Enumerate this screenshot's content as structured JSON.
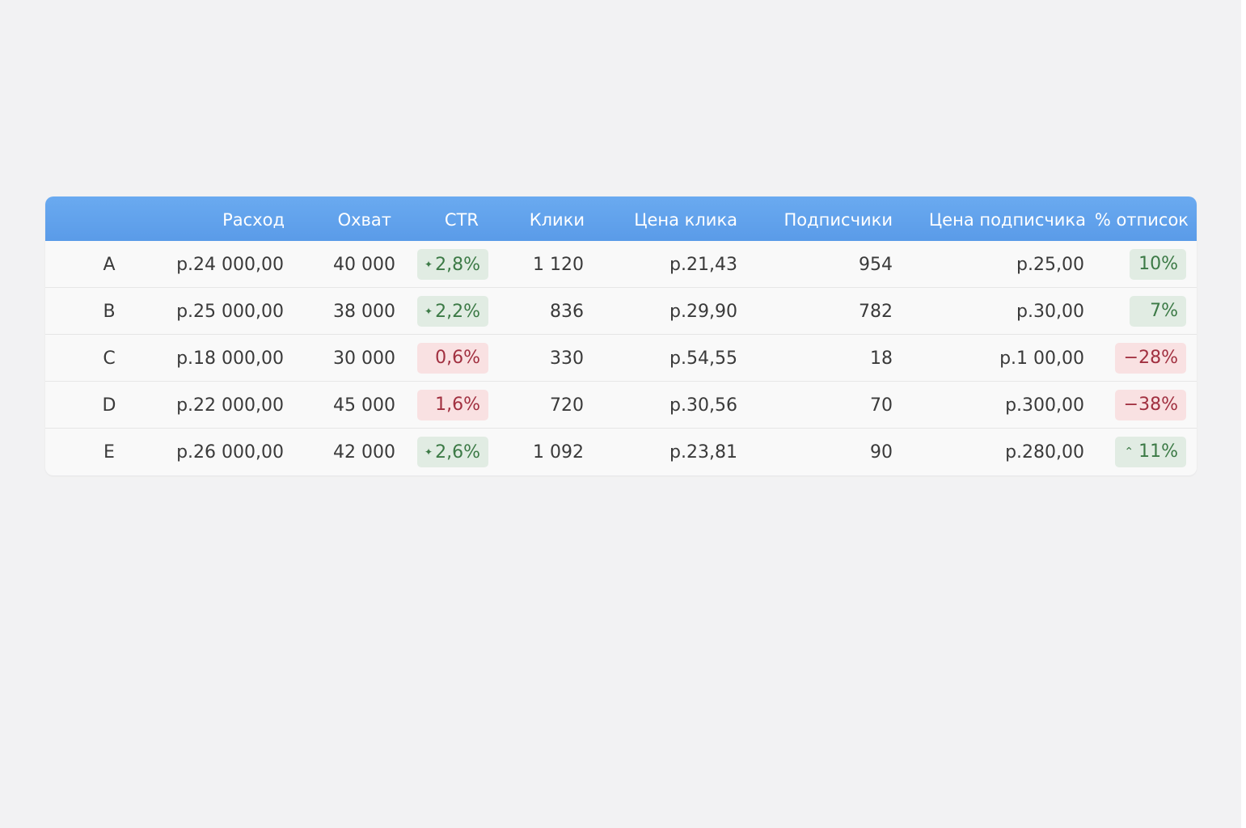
{
  "table": {
    "headers": [
      "Расход",
      "Охват",
      "CTR",
      "Клики",
      "Цена клика",
      "Подписчики",
      "Цена подписчика",
      "% отписок"
    ],
    "rows": [
      {
        "label": "A",
        "spend": "р.24 000,00",
        "reach": "40 000",
        "ctr": {
          "text": "2,8%",
          "glyph": "✦",
          "status": "positive"
        },
        "clicks": "1 120",
        "cpc": "р.21,43",
        "subscribers": "954",
        "cost_per_sub": "р.25,00",
        "unsub": {
          "text": "10%",
          "glyph": "",
          "status": "positive"
        }
      },
      {
        "label": "B",
        "spend": "р.25 000,00",
        "reach": "38 000",
        "ctr": {
          "text": "2,2%",
          "glyph": "✦",
          "status": "positive"
        },
        "clicks": "836",
        "cpc": "р.29,90",
        "subscribers": "782",
        "cost_per_sub": "р.30,00",
        "unsub": {
          "text": "7%",
          "glyph": "",
          "status": "positive"
        }
      },
      {
        "label": "C",
        "spend": "р.18 000,00",
        "reach": "30 000",
        "ctr": {
          "text": "0,6%",
          "glyph": "",
          "status": "negative"
        },
        "clicks": "330",
        "cpc": "р.54,55",
        "subscribers": "18",
        "cost_per_sub": "р.1 00,00",
        "unsub": {
          "text": "−28%",
          "glyph": "",
          "status": "negative"
        }
      },
      {
        "label": "D",
        "spend": "р.22 000,00",
        "reach": "45 000",
        "ctr": {
          "text": "1,6%",
          "glyph": "",
          "status": "negative"
        },
        "clicks": "720",
        "cpc": "р.30,56",
        "subscribers": "70",
        "cost_per_sub": "р.300,00",
        "unsub": {
          "text": "−38%",
          "glyph": "",
          "status": "negative"
        }
      },
      {
        "label": "E",
        "spend": "р.26 000,00",
        "reach": "42 000",
        "ctr": {
          "text": "2,6%",
          "glyph": "✦",
          "status": "positive"
        },
        "clicks": "1 092",
        "cpc": "р.23,81",
        "subscribers": "90",
        "cost_per_sub": "р.280,00",
        "unsub": {
          "text": "11%",
          "glyph": "⌃",
          "status": "positive"
        }
      }
    ]
  },
  "colors": {
    "header_bg": "#5fa2ec",
    "positive_bg": "#e1ece3",
    "positive_text": "#3c7a46",
    "negative_bg": "#f9e1e2",
    "negative_text": "#a13040"
  }
}
